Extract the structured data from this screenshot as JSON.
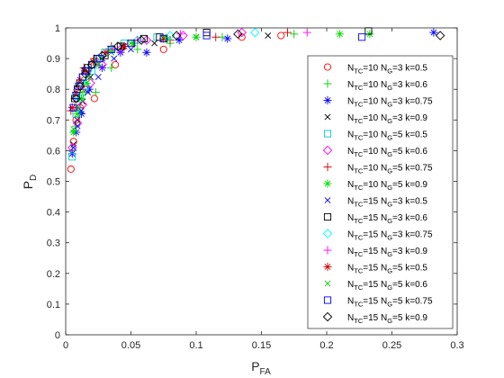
{
  "chart_data": {
    "type": "scatter",
    "xlabel_main": "P",
    "xlabel_sub": "FA",
    "ylabel_main": "P",
    "ylabel_sub": "D",
    "xlim": [
      0,
      0.3
    ],
    "ylim": [
      0,
      1
    ],
    "xticks": [
      0,
      0.05,
      0.1,
      0.15,
      0.2,
      0.25,
      0.3
    ],
    "xtick_labels": [
      "0",
      "0.05",
      "0.1",
      "0.15",
      "0.2",
      "0.25",
      "0.3"
    ],
    "yticks": [
      0,
      0.1,
      0.2,
      0.3,
      0.4,
      0.5,
      0.6,
      0.7,
      0.8,
      0.9,
      1
    ],
    "ytick_labels": [
      "0",
      "0.1",
      "0.2",
      "0.3",
      "0.4",
      "0.5",
      "0.6",
      "0.7",
      "0.8",
      "0.9",
      "1"
    ],
    "grid": false,
    "legend_position": "right",
    "series": [
      {
        "ntc": "10",
        "ng": "3",
        "k": "0.5",
        "marker": "circle",
        "color": "#ff0000",
        "x": [
          0.004,
          0.006,
          0.008,
          0.011,
          0.016,
          0.022,
          0.038,
          0.075,
          0.135,
          0.165
        ],
        "y": [
          0.54,
          0.63,
          0.7,
          0.74,
          0.8,
          0.77,
          0.88,
          0.93,
          0.97,
          0.975
        ]
      },
      {
        "ntc": "10",
        "ng": "3",
        "k": "0.6",
        "marker": "plus",
        "color": "#00cc00",
        "x": [
          0.005,
          0.008,
          0.011,
          0.015,
          0.023,
          0.035,
          0.055,
          0.08,
          0.12,
          0.175
        ],
        "y": [
          0.6,
          0.68,
          0.74,
          0.79,
          0.79,
          0.87,
          0.93,
          0.95,
          0.97,
          0.98
        ]
      },
      {
        "ntc": "10",
        "ng": "3",
        "k": "0.75",
        "marker": "asterisk",
        "color": "#0000ff",
        "x": [
          0.005,
          0.008,
          0.012,
          0.018,
          0.028,
          0.042,
          0.062,
          0.087,
          0.124,
          0.282
        ],
        "y": [
          0.59,
          0.66,
          0.72,
          0.8,
          0.87,
          0.92,
          0.92,
          0.96,
          0.965,
          0.985
        ]
      },
      {
        "ntc": "10",
        "ng": "3",
        "k": "0.9",
        "marker": "x",
        "color": "#000000",
        "x": [
          0.006,
          0.009,
          0.013,
          0.019,
          0.028,
          0.044,
          0.068,
          0.1,
          0.155
        ],
        "y": [
          0.62,
          0.7,
          0.76,
          0.84,
          0.9,
          0.94,
          0.95,
          0.97,
          0.975
        ]
      },
      {
        "ntc": "10",
        "ng": "5",
        "k": "0.5",
        "marker": "square",
        "color": "#00cccc",
        "x": [
          0.005,
          0.008,
          0.011,
          0.015,
          0.02,
          0.03,
          0.045,
          0.07
        ],
        "y": [
          0.58,
          0.72,
          0.77,
          0.81,
          0.86,
          0.92,
          0.95,
          0.97
        ]
      },
      {
        "ntc": "10",
        "ng": "5",
        "k": "0.6",
        "marker": "diamond",
        "color": "#ff00ff",
        "x": [
          0.005,
          0.009,
          0.013,
          0.019,
          0.028,
          0.042,
          0.062,
          0.09,
          0.135
        ],
        "y": [
          0.61,
          0.69,
          0.75,
          0.82,
          0.88,
          0.93,
          0.96,
          0.975,
          0.985
        ]
      },
      {
        "ntc": "10",
        "ng": "5",
        "k": "0.75",
        "marker": "plus",
        "color": "#cc0000",
        "x": [
          0.004,
          0.007,
          0.01,
          0.014,
          0.022,
          0.035,
          0.053,
          0.08,
          0.115,
          0.17
        ],
        "y": [
          0.73,
          0.77,
          0.81,
          0.87,
          0.9,
          0.94,
          0.95,
          0.96,
          0.97,
          0.985
        ]
      },
      {
        "ntc": "10",
        "ng": "5",
        "k": "0.9",
        "marker": "asterisk",
        "color": "#00dd00",
        "x": [
          0.006,
          0.009,
          0.012,
          0.016,
          0.024,
          0.035,
          0.052,
          0.078,
          0.1,
          0.21,
          0.233
        ],
        "y": [
          0.66,
          0.72,
          0.77,
          0.82,
          0.88,
          0.93,
          0.95,
          0.965,
          0.97,
          0.98,
          0.98
        ]
      },
      {
        "ntc": "15",
        "ng": "3",
        "k": "0.5",
        "marker": "x",
        "color": "#0000ff",
        "x": [
          0.006,
          0.009,
          0.012,
          0.017,
          0.025,
          0.037,
          0.05
        ],
        "y": [
          0.61,
          0.68,
          0.73,
          0.79,
          0.84,
          0.9,
          0.93
        ]
      },
      {
        "ntc": "15",
        "ng": "3",
        "k": "0.6",
        "marker": "square",
        "color": "#000000",
        "x": [
          0.007,
          0.009,
          0.011,
          0.013,
          0.015,
          0.017,
          0.02,
          0.024,
          0.03,
          0.042,
          0.06,
          0.072,
          0.108,
          0.232
        ],
        "y": [
          0.77,
          0.8,
          0.82,
          0.84,
          0.86,
          0.87,
          0.88,
          0.9,
          0.91,
          0.94,
          0.965,
          0.97,
          0.985,
          0.99
        ]
      },
      {
        "ntc": "15",
        "ng": "3",
        "k": "0.75",
        "marker": "diamond",
        "color": "#00ffff",
        "x": [
          0.008,
          0.012,
          0.017,
          0.025,
          0.036,
          0.055,
          0.08,
          0.145
        ],
        "y": [
          0.78,
          0.82,
          0.86,
          0.9,
          0.93,
          0.96,
          0.975,
          0.985
        ]
      },
      {
        "ntc": "15",
        "ng": "3",
        "k": "0.9",
        "marker": "plus",
        "color": "#ff00ff",
        "x": [
          0.007,
          0.011,
          0.016,
          0.024,
          0.036,
          0.055,
          0.088,
          0.185
        ],
        "y": [
          0.74,
          0.8,
          0.85,
          0.89,
          0.93,
          0.96,
          0.98,
          0.985
        ]
      },
      {
        "ntc": "15",
        "ng": "5",
        "k": "0.5",
        "marker": "asterisk",
        "color": "#cc0000",
        "x": [
          0.005,
          0.008,
          0.011,
          0.015,
          0.021,
          0.031,
          0.045,
          0.075
        ],
        "y": [
          0.74,
          0.79,
          0.83,
          0.86,
          0.89,
          0.92,
          0.94,
          0.965
        ]
      },
      {
        "ntc": "15",
        "ng": "5",
        "k": "0.6",
        "marker": "x",
        "color": "#00cc00",
        "x": [
          0.006,
          0.009,
          0.012,
          0.017,
          0.024,
          0.035,
          0.05,
          0.075
        ],
        "y": [
          0.67,
          0.74,
          0.79,
          0.84,
          0.89,
          0.92,
          0.95,
          0.97
        ]
      },
      {
        "ntc": "15",
        "ng": "5",
        "k": "0.75",
        "marker": "square",
        "color": "#0000ff",
        "x": [
          0.006,
          0.008,
          0.01,
          0.013,
          0.016,
          0.02,
          0.026,
          0.035,
          0.05,
          0.075,
          0.108,
          0.227
        ],
        "y": [
          0.74,
          0.78,
          0.81,
          0.84,
          0.86,
          0.88,
          0.9,
          0.93,
          0.95,
          0.965,
          0.975,
          0.97
        ]
      },
      {
        "ntc": "15",
        "ng": "5",
        "k": "0.9",
        "marker": "diamond",
        "color": "#000000",
        "x": [
          0.008,
          0.011,
          0.015,
          0.02,
          0.028,
          0.04,
          0.058,
          0.085,
          0.132,
          0.287
        ],
        "y": [
          0.77,
          0.81,
          0.85,
          0.88,
          0.91,
          0.94,
          0.96,
          0.975,
          0.98,
          0.975
        ]
      }
    ]
  }
}
